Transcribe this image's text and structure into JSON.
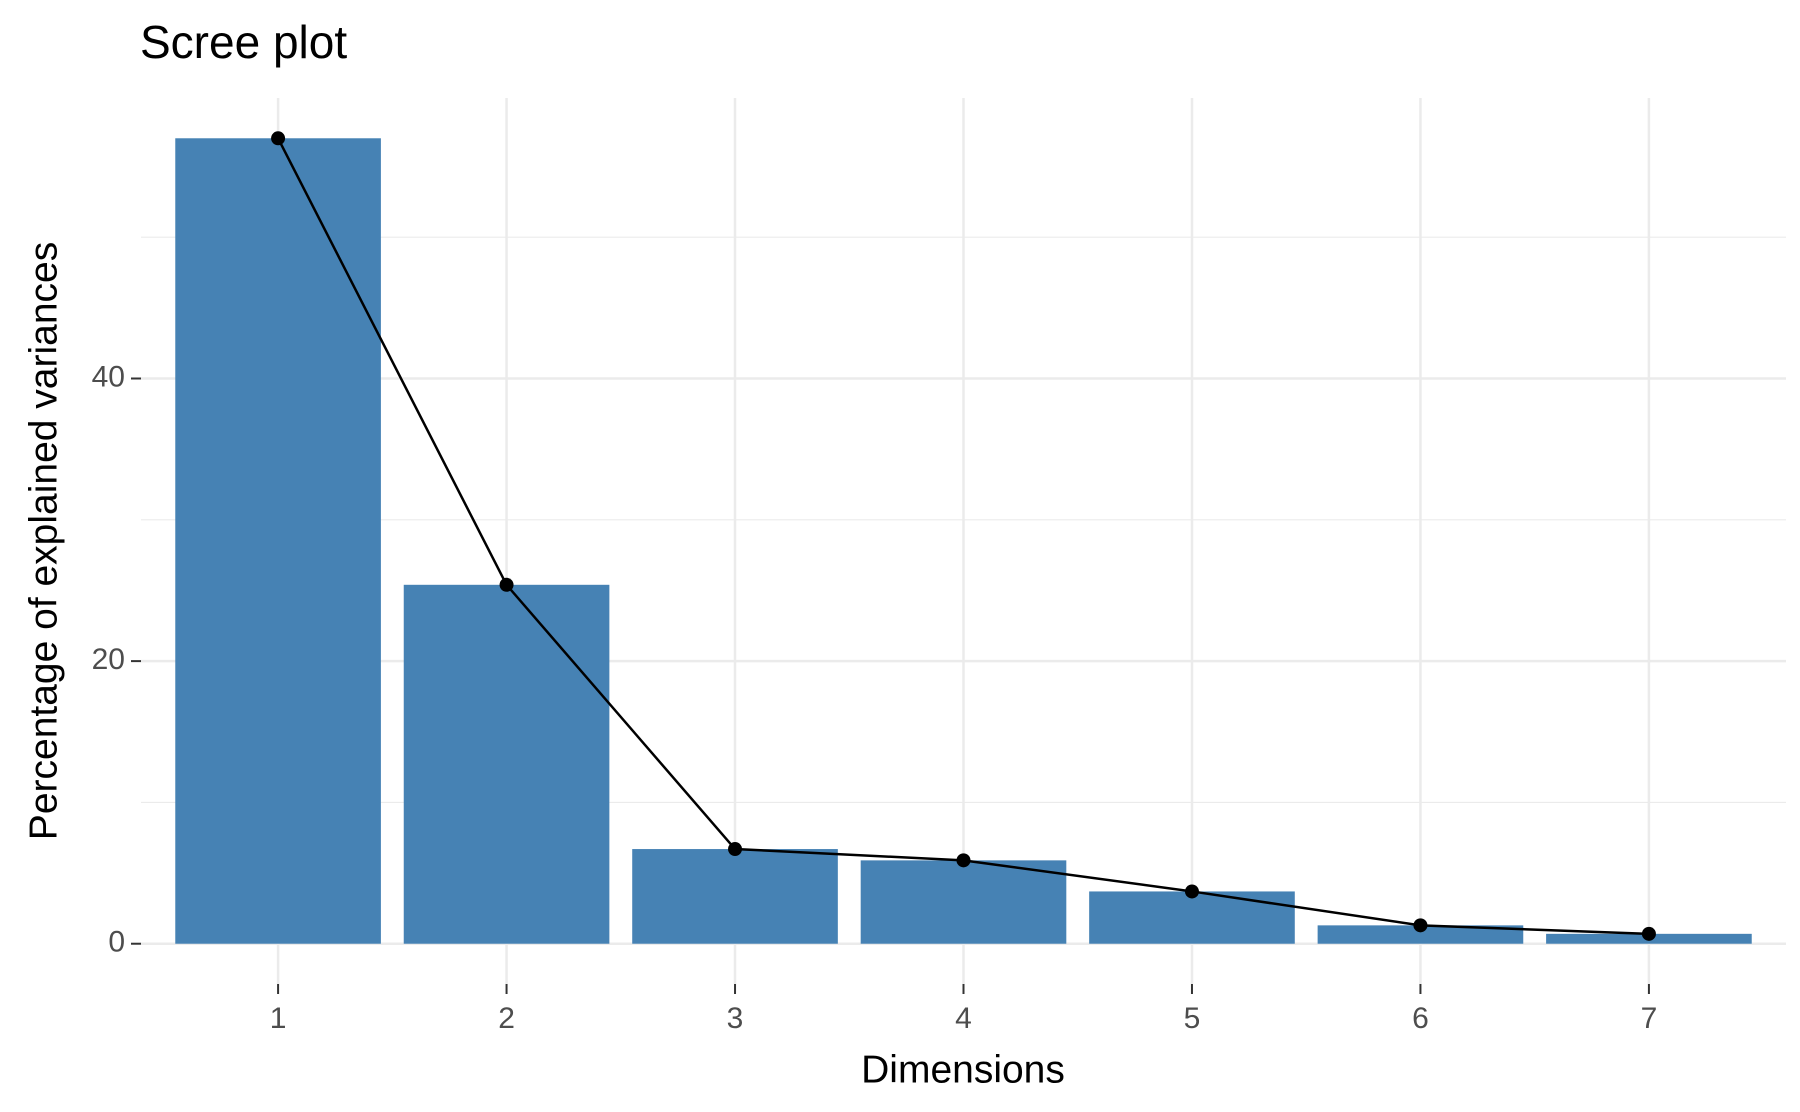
{
  "chart_data": {
    "type": "bar",
    "title": "Scree plot",
    "x_label": "Dimensions",
    "y_label": "Percentage of explained variances",
    "categories": [
      "1",
      "2",
      "3",
      "4",
      "5",
      "6",
      "7"
    ],
    "values": [
      57.0,
      25.4,
      6.7,
      5.9,
      3.7,
      1.3,
      0.7
    ],
    "color": "#4682b4",
    "line_color": "#000000",
    "ylim": [
      -2.85,
      59.85
    ],
    "yticks": [
      0,
      20,
      40
    ],
    "minor_yticks": [
      10,
      30,
      50
    ],
    "grid": true
  }
}
